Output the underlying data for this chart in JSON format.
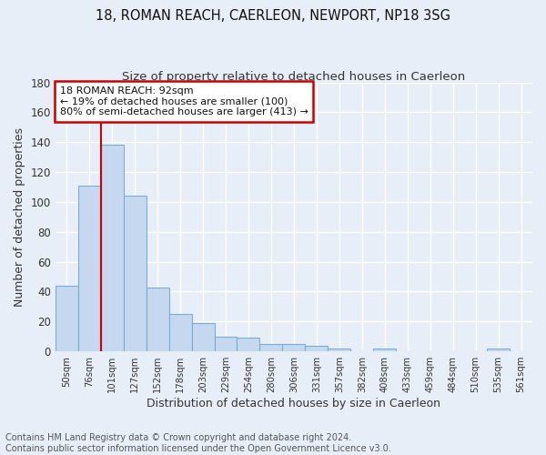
{
  "title1": "18, ROMAN REACH, CAERLEON, NEWPORT, NP18 3SG",
  "title2": "Size of property relative to detached houses in Caerleon",
  "xlabel": "Distribution of detached houses by size in Caerleon",
  "ylabel": "Number of detached properties",
  "categories": [
    "50sqm",
    "76sqm",
    "101sqm",
    "127sqm",
    "152sqm",
    "178sqm",
    "203sqm",
    "229sqm",
    "254sqm",
    "280sqm",
    "306sqm",
    "331sqm",
    "357sqm",
    "382sqm",
    "408sqm",
    "433sqm",
    "459sqm",
    "484sqm",
    "510sqm",
    "535sqm",
    "561sqm"
  ],
  "values": [
    44,
    111,
    138,
    104,
    43,
    25,
    19,
    10,
    9,
    5,
    5,
    4,
    2,
    0,
    2,
    0,
    0,
    0,
    0,
    2,
    0
  ],
  "bar_color": "#c5d8f0",
  "bar_edge_color": "#7aadd4",
  "annotation_text": "18 ROMAN REACH: 92sqm\n← 19% of detached houses are smaller (100)\n80% of semi-detached houses are larger (413) →",
  "annotation_box_color": "#ffffff",
  "annotation_box_edge": "#cc0000",
  "vline_color": "#cc0000",
  "footer": "Contains HM Land Registry data © Crown copyright and database right 2024.\nContains public sector information licensed under the Open Government Licence v3.0.",
  "ylim": [
    0,
    180
  ],
  "yticks": [
    0,
    20,
    40,
    60,
    80,
    100,
    120,
    140,
    160,
    180
  ],
  "bg_color": "#e8eef8",
  "grid_color": "#ffffff",
  "title1_fontsize": 10.5,
  "title2_fontsize": 9.5,
  "footer_fontsize": 7,
  "ylabel_fontsize": 9,
  "xlabel_fontsize": 9
}
